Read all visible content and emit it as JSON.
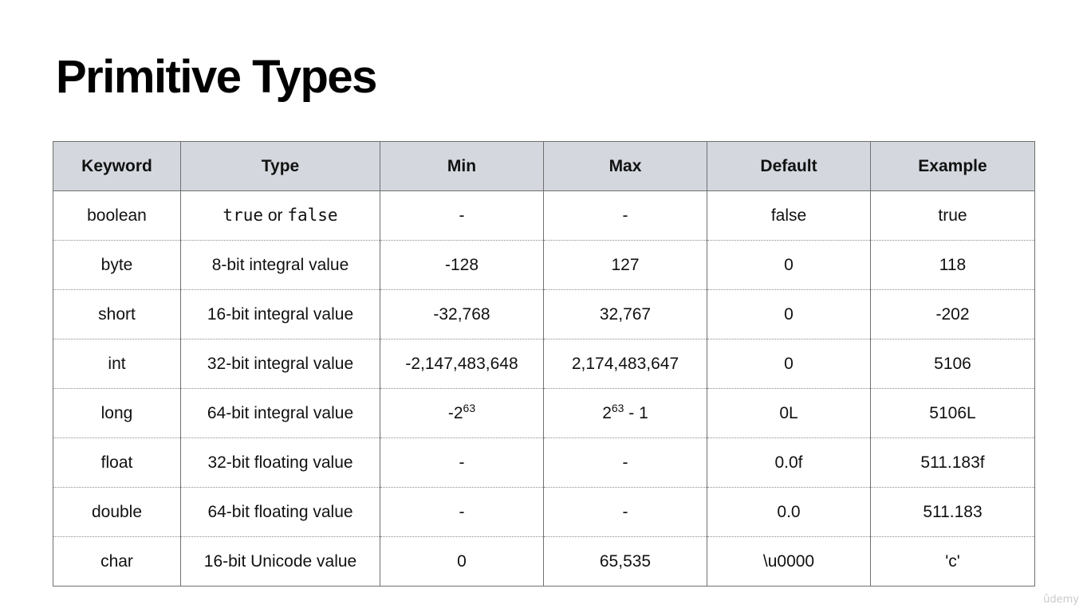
{
  "slide": {
    "title": "Primitive Types",
    "watermark": "ûdemy"
  },
  "table": {
    "headers": [
      "Keyword",
      "Type",
      "Min",
      "Max",
      "Default",
      "Example"
    ],
    "rows": [
      {
        "keyword": "boolean",
        "type_a": "true",
        "type_or": " or ",
        "type_b": "false",
        "min": "-",
        "max": "-",
        "default": "false",
        "example": "true"
      },
      {
        "keyword": "byte",
        "type": "8-bit integral value",
        "min": "-128",
        "max": "127",
        "default": "0",
        "example": "118"
      },
      {
        "keyword": "short",
        "type": "16-bit integral value",
        "min": "-32,768",
        "max": "32,767",
        "default": "0",
        "example": "-202"
      },
      {
        "keyword": "int",
        "type": "32-bit integral value",
        "min": "-2,147,483,648",
        "max": "2,174,483,647",
        "default": "0",
        "example": "5106"
      },
      {
        "keyword": "long",
        "type": "64-bit integral value",
        "min_base": "-2",
        "min_exp": "63",
        "max_base": "2",
        "max_exp": "63",
        "max_suffix": " - 1",
        "default": "0L",
        "example": "5106L"
      },
      {
        "keyword": "float",
        "type": "32-bit floating value",
        "min": "-",
        "max": "-",
        "default": "0.0f",
        "example": "511.183f"
      },
      {
        "keyword": "double",
        "type": "64-bit floating value",
        "min": "-",
        "max": "-",
        "default": "0.0",
        "example": "511.183"
      },
      {
        "keyword": "char",
        "type": "16-bit Unicode value",
        "min": "0",
        "max": "65,535",
        "default": "\\u0000",
        "example": "'c'"
      }
    ]
  }
}
